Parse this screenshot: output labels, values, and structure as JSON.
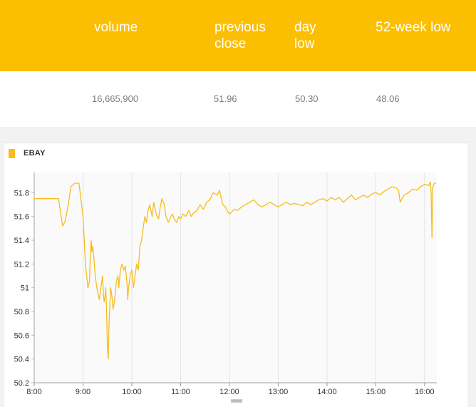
{
  "stats": {
    "headers": [
      "volume",
      "previous close",
      "day low",
      "52-week low"
    ],
    "values": [
      "16,665,900",
      "51.96",
      "50.30",
      "48.06"
    ]
  },
  "colors": {
    "accent": "#fbbe00",
    "series": "#f6bd1d"
  },
  "chart_data": {
    "type": "line",
    "title": "",
    "xlabel": "",
    "ylabel": "",
    "legend": "top-left",
    "grid": true,
    "xticks": [
      "8:00",
      "9:00",
      "10:00",
      "11:00",
      "12:00",
      "13:00",
      "14:00",
      "15:00",
      "16:00"
    ],
    "yticks": [
      "50.2",
      "50.4",
      "50.6",
      "50.8",
      "51",
      "51.2",
      "51.4",
      "51.6",
      "51.8"
    ],
    "xlim": [
      "8:00",
      "16:15"
    ],
    "ylim": [
      50.2,
      51.97
    ],
    "series": [
      {
        "name": "EBAY",
        "x": [
          "8:00",
          "8:30",
          "8:33",
          "8:35",
          "8:38",
          "8:42",
          "8:45",
          "8:50",
          "8:55",
          "9:00",
          "9:03",
          "9:06",
          "9:08",
          "9:09",
          "9:10",
          "9:11",
          "9:12",
          "9:14",
          "9:15",
          "9:17",
          "9:20",
          "9:22",
          "9:24",
          "9:25",
          "9:26",
          "9:27",
          "9:28",
          "9:29",
          "9:30",
          "9:31",
          "9:32",
          "9:34",
          "9:36",
          "9:37",
          "9:39",
          "9:41",
          "9:43",
          "9:44",
          "9:46",
          "9:48",
          "9:50",
          "9:52",
          "9:54",
          "9:55",
          "9:56",
          "9:57",
          "9:58",
          "10:00",
          "10:02",
          "10:04",
          "10:06",
          "10:08",
          "10:10",
          "10:12",
          "10:14",
          "10:16",
          "10:18",
          "10:20",
          "10:22",
          "10:25",
          "10:27",
          "10:29",
          "10:31",
          "10:33",
          "10:35",
          "10:37",
          "10:40",
          "10:42",
          "10:45",
          "10:48",
          "10:50",
          "10:52",
          "10:55",
          "10:58",
          "11:00",
          "11:03",
          "11:06",
          "11:10",
          "11:13",
          "11:16",
          "11:20",
          "11:24",
          "11:28",
          "11:32",
          "11:36",
          "11:40",
          "11:45",
          "11:48",
          "11:50",
          "11:52",
          "11:55",
          "11:58",
          "12:00",
          "12:03",
          "12:06",
          "12:10",
          "12:15",
          "12:20",
          "12:25",
          "12:30",
          "12:35",
          "12:40",
          "12:45",
          "12:50",
          "12:55",
          "13:00",
          "13:05",
          "13:10",
          "13:15",
          "13:20",
          "13:25",
          "13:30",
          "13:35",
          "13:40",
          "13:45",
          "13:50",
          "13:55",
          "14:00",
          "14:05",
          "14:10",
          "14:15",
          "14:20",
          "14:25",
          "14:30",
          "14:35",
          "14:40",
          "14:45",
          "14:50",
          "14:55",
          "15:00",
          "15:05",
          "15:10",
          "15:15",
          "15:20",
          "15:25",
          "15:28",
          "15:30",
          "15:35",
          "15:40",
          "15:45",
          "15:50",
          "15:55",
          "16:00",
          "16:05",
          "16:07",
          "16:08",
          "16:09",
          "16:10",
          "16:12",
          "16:14"
        ],
        "y": [
          51.75,
          51.75,
          51.6,
          51.52,
          51.56,
          51.7,
          51.85,
          51.88,
          51.88,
          51.6,
          51.2,
          51.0,
          51.05,
          51.3,
          51.4,
          51.3,
          51.35,
          51.2,
          51.1,
          51.0,
          50.9,
          51.0,
          51.1,
          50.95,
          50.88,
          50.92,
          51.0,
          50.8,
          50.5,
          50.4,
          50.7,
          51.0,
          50.9,
          50.82,
          50.9,
          51.05,
          51.1,
          51.0,
          51.15,
          51.2,
          51.15,
          51.18,
          51.05,
          50.9,
          51.0,
          51.05,
          51.1,
          51.15,
          51.0,
          51.1,
          51.2,
          51.15,
          51.35,
          51.4,
          51.5,
          51.6,
          51.55,
          51.65,
          51.7,
          51.6,
          51.72,
          51.65,
          51.6,
          51.58,
          51.68,
          51.75,
          51.7,
          51.6,
          51.55,
          51.6,
          51.62,
          51.58,
          51.55,
          51.6,
          51.58,
          51.62,
          51.6,
          51.65,
          51.6,
          51.63,
          51.65,
          51.7,
          51.66,
          51.72,
          51.74,
          51.8,
          51.78,
          51.82,
          51.75,
          51.7,
          51.68,
          51.64,
          51.62,
          51.64,
          51.66,
          51.65,
          51.68,
          51.7,
          51.72,
          51.74,
          51.7,
          51.68,
          51.7,
          51.72,
          51.7,
          51.68,
          51.7,
          51.72,
          51.7,
          51.71,
          51.7,
          51.69,
          51.72,
          51.7,
          51.72,
          51.74,
          51.75,
          51.73,
          51.76,
          51.74,
          51.76,
          51.72,
          51.75,
          51.78,
          51.74,
          51.76,
          51.78,
          51.76,
          51.79,
          51.8,
          51.78,
          51.81,
          51.83,
          51.85,
          51.84,
          51.82,
          51.72,
          51.78,
          51.8,
          51.83,
          51.82,
          51.85,
          51.87,
          51.86,
          51.89,
          51.8,
          51.42,
          51.85,
          51.88,
          51.88
        ]
      }
    ]
  }
}
